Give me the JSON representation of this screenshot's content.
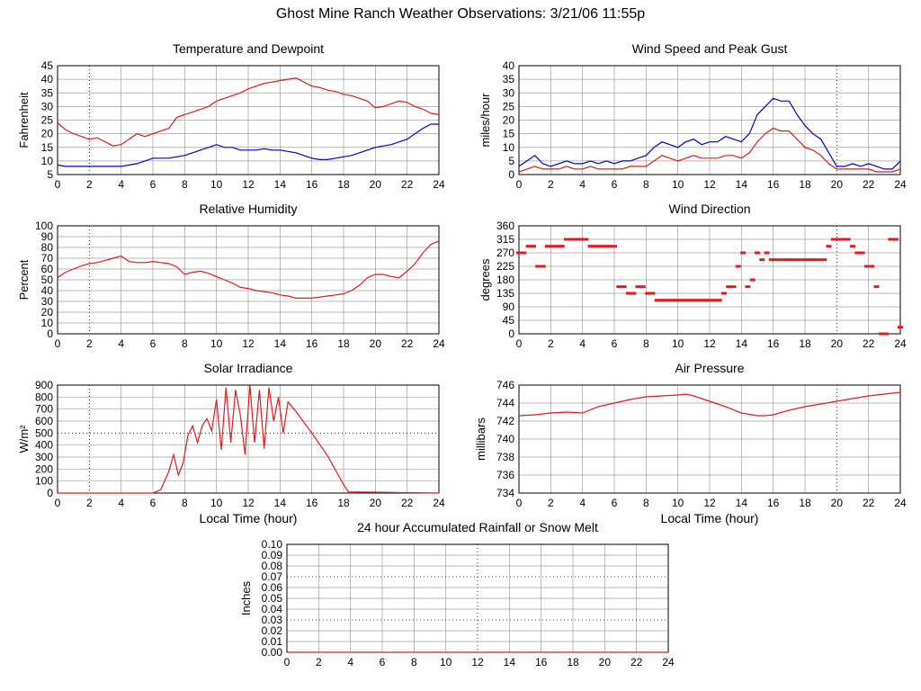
{
  "page": {
    "title": "Ghost Mine Ranch Weather Observations: 3/21/06 11:55p"
  },
  "colors": {
    "red": "#e41a1c",
    "blue": "#0000cc",
    "grid": "#a0a0a0",
    "axis": "#000000"
  },
  "chart_data": [
    {
      "id": "temp",
      "type": "line",
      "title": "Temperature and Dewpoint",
      "ylabel": "Fahrenheit",
      "xlabel": "",
      "xlim": [
        0,
        24
      ],
      "ylim": [
        5,
        45
      ],
      "xticks": [
        0,
        2,
        4,
        6,
        8,
        10,
        12,
        14,
        16,
        18,
        20,
        22,
        24
      ],
      "yticks": [
        5,
        10,
        15,
        20,
        25,
        30,
        35,
        40,
        45
      ],
      "grid": true,
      "series": [
        {
          "color": "red",
          "x": [
            0,
            0.5,
            1,
            1.5,
            2,
            2.5,
            3,
            3.5,
            4,
            4.5,
            5,
            5.5,
            6,
            6.5,
            7,
            7.5,
            8,
            8.5,
            9,
            9.5,
            10,
            10.5,
            11,
            11.5,
            12,
            12.5,
            13,
            13.5,
            14,
            14.5,
            15,
            15.5,
            16,
            16.5,
            17,
            17.5,
            18,
            18.5,
            19,
            19.5,
            20,
            20.5,
            21,
            21.5,
            22,
            22.5,
            23,
            23.5,
            24
          ],
          "y": [
            24,
            21.5,
            20,
            19,
            18,
            18.5,
            17,
            15.5,
            16,
            18,
            20,
            19,
            20,
            21,
            22,
            26,
            27,
            28,
            29,
            30,
            32,
            33,
            34,
            35,
            36.5,
            37.5,
            38.5,
            39,
            39.5,
            40,
            40.5,
            39,
            37.5,
            37,
            36,
            35.5,
            34.5,
            34,
            33,
            32,
            29.5,
            30,
            31,
            32,
            31.5,
            30,
            29,
            27.5,
            27
          ]
        },
        {
          "color": "blue",
          "x": [
            0,
            0.5,
            1,
            1.5,
            2,
            2.5,
            3,
            3.5,
            4,
            4.5,
            5,
            5.5,
            6,
            6.5,
            7,
            7.5,
            8,
            8.5,
            9,
            9.5,
            10,
            10.5,
            11,
            11.5,
            12,
            12.5,
            13,
            13.5,
            14,
            14.5,
            15,
            15.5,
            16,
            16.5,
            17,
            17.5,
            18,
            18.5,
            19,
            19.5,
            20,
            20.5,
            21,
            21.5,
            22,
            22.5,
            23,
            23.5,
            24
          ],
          "y": [
            8.5,
            8,
            8,
            8,
            8,
            8,
            8,
            8,
            8,
            8.5,
            9,
            10,
            11,
            11,
            11,
            11.5,
            12,
            13,
            14,
            15,
            16,
            15,
            15,
            14,
            14,
            14,
            14.5,
            14,
            14,
            13.5,
            13,
            12,
            11,
            10.5,
            10.5,
            11,
            11.5,
            12,
            13,
            14,
            15,
            15.5,
            16,
            17,
            18,
            20,
            22,
            23.5,
            23.5
          ]
        }
      ]
    },
    {
      "id": "wind",
      "type": "line",
      "title": "Wind Speed and Peak Gust",
      "ylabel": "miles/hour",
      "xlabel": "",
      "xlim": [
        0,
        24
      ],
      "ylim": [
        0,
        40
      ],
      "xticks": [
        0,
        2,
        4,
        6,
        8,
        10,
        12,
        14,
        16,
        18,
        20,
        22,
        24
      ],
      "yticks": [
        0,
        5,
        10,
        15,
        20,
        25,
        30,
        35,
        40
      ],
      "grid": true,
      "series": [
        {
          "color": "blue",
          "x": [
            0,
            0.5,
            1,
            1.5,
            2,
            2.5,
            3,
            3.5,
            4,
            4.5,
            5,
            5.5,
            6,
            6.5,
            7,
            7.5,
            8,
            8.5,
            9,
            9.5,
            10,
            10.5,
            11,
            11.5,
            12,
            12.5,
            13,
            13.5,
            14,
            14.5,
            15,
            15.5,
            16,
            16.5,
            17,
            17.5,
            18,
            18.5,
            19,
            19.5,
            20,
            20.5,
            21,
            21.5,
            22,
            22.5,
            23,
            23.5,
            24
          ],
          "y": [
            3,
            5,
            7,
            4,
            3,
            4,
            5,
            4,
            4,
            5,
            4,
            5,
            4,
            5,
            5,
            6,
            7,
            10,
            12,
            11,
            10,
            12,
            13,
            11,
            12,
            12,
            14,
            13,
            12,
            15,
            22,
            25,
            28,
            27,
            27,
            22,
            18,
            15,
            13,
            8,
            3,
            3,
            4,
            3,
            4,
            3,
            2,
            2,
            5
          ]
        },
        {
          "color": "red",
          "x": [
            0,
            0.5,
            1,
            1.5,
            2,
            2.5,
            3,
            3.5,
            4,
            4.5,
            5,
            5.5,
            6,
            6.5,
            7,
            7.5,
            8,
            8.5,
            9,
            9.5,
            10,
            10.5,
            11,
            11.5,
            12,
            12.5,
            13,
            13.5,
            14,
            14.5,
            15,
            15.5,
            16,
            16.5,
            17,
            17.5,
            18,
            18.5,
            19,
            19.5,
            20,
            20.5,
            21,
            21.5,
            22,
            22.5,
            23,
            23.5,
            24
          ],
          "y": [
            1,
            2,
            3,
            2,
            2,
            2,
            3,
            2,
            2,
            3,
            2,
            2,
            2,
            2,
            3,
            3,
            3,
            5,
            7,
            6,
            5,
            6,
            7,
            6,
            6,
            6,
            7,
            7,
            6,
            8,
            12,
            15,
            17,
            16,
            16,
            13,
            10,
            9,
            7,
            4,
            2,
            2,
            2,
            2,
            2,
            1,
            1,
            1,
            2
          ]
        }
      ]
    },
    {
      "id": "rh",
      "type": "line",
      "title": "Relative Humidity",
      "ylabel": "Percent",
      "xlabel": "",
      "xlim": [
        0,
        24
      ],
      "ylim": [
        0,
        100
      ],
      "xticks": [
        0,
        2,
        4,
        6,
        8,
        10,
        12,
        14,
        16,
        18,
        20,
        22,
        24
      ],
      "yticks": [
        0,
        10,
        20,
        30,
        40,
        50,
        60,
        70,
        80,
        90,
        100
      ],
      "grid": true,
      "series": [
        {
          "color": "red",
          "x": [
            0,
            0.5,
            1,
            1.5,
            2,
            2.5,
            3,
            3.5,
            4,
            4.5,
            5,
            5.5,
            6,
            6.5,
            7,
            7.5,
            8,
            8.5,
            9,
            9.5,
            10,
            10.5,
            11,
            11.5,
            12,
            12.5,
            13,
            13.5,
            14,
            14.5,
            15,
            15.5,
            16,
            16.5,
            17,
            17.5,
            18,
            18.5,
            19,
            19.5,
            20,
            20.5,
            21,
            21.5,
            22,
            22.5,
            23,
            23.5,
            24
          ],
          "y": [
            52,
            57,
            60,
            63,
            65,
            66,
            68,
            70,
            72,
            67,
            66,
            66,
            67,
            66,
            65,
            62,
            55,
            57,
            58,
            56,
            53,
            50,
            47,
            43,
            42,
            40,
            39,
            38,
            36,
            35,
            33,
            33,
            33,
            34,
            35,
            36,
            37,
            40,
            45,
            52,
            55,
            55,
            53,
            52,
            58,
            65,
            75,
            83,
            86
          ]
        }
      ]
    },
    {
      "id": "wdir",
      "type": "scatter",
      "title": "Wind Direction",
      "ylabel": "degrees",
      "xlabel": "",
      "xlim": [
        0,
        24
      ],
      "ylim": [
        0,
        360
      ],
      "xticks": [
        0,
        2,
        4,
        6,
        8,
        10,
        12,
        14,
        16,
        18,
        20,
        22,
        24
      ],
      "yticks": [
        0,
        45,
        90,
        135,
        180,
        225,
        270,
        315,
        360
      ],
      "grid": true,
      "series": [
        {
          "color": "red",
          "x": [
            0,
            0.3,
            0.6,
            0.9,
            1.2,
            1.5,
            1.8,
            2.1,
            2.4,
            2.7,
            3.0,
            3.3,
            3.6,
            3.9,
            4.2,
            4.5,
            4.8,
            5.1,
            5.4,
            5.7,
            6.0,
            6.3,
            6.6,
            6.9,
            7.2,
            7.5,
            7.8,
            8.1,
            8.4,
            8.7,
            9.0,
            9.3,
            9.6,
            9.9,
            10.2,
            10.5,
            10.8,
            11.1,
            11.4,
            11.7,
            12.0,
            12.3,
            12.6,
            12.9,
            13.2,
            13.5,
            13.8,
            14.1,
            14.4,
            14.7,
            15.0,
            15.3,
            15.6,
            15.9,
            16.2,
            16.5,
            16.8,
            17.1,
            17.4,
            17.7,
            18.0,
            18.3,
            18.6,
            18.9,
            19.2,
            19.5,
            19.8,
            20.1,
            20.4,
            20.7,
            21.0,
            21.3,
            21.6,
            21.9,
            22.2,
            22.5,
            22.8,
            23.1,
            23.4,
            23.7,
            24.0
          ],
          "y": [
            270,
            270,
            292,
            292,
            225,
            225,
            292,
            292,
            292,
            292,
            315,
            315,
            315,
            315,
            315,
            292,
            292,
            292,
            292,
            292,
            292,
            157,
            157,
            135,
            135,
            157,
            157,
            135,
            135,
            112,
            112,
            112,
            112,
            112,
            112,
            112,
            112,
            112,
            112,
            112,
            112,
            112,
            112,
            135,
            157,
            157,
            225,
            270,
            157,
            180,
            270,
            247,
            270,
            247,
            247,
            247,
            247,
            247,
            247,
            247,
            247,
            247,
            247,
            247,
            247,
            292,
            315,
            315,
            315,
            315,
            292,
            270,
            270,
            225,
            225,
            157,
            0,
            0,
            315,
            315,
            22
          ]
        }
      ]
    },
    {
      "id": "solar",
      "type": "line",
      "title": "Solar Irradiance",
      "ylabel": "W/m²",
      "xlabel": "Local Time (hour)",
      "xlim": [
        0,
        24
      ],
      "ylim": [
        0,
        900
      ],
      "xticks": [
        0,
        2,
        4,
        6,
        8,
        10,
        12,
        14,
        16,
        18,
        20,
        22,
        24
      ],
      "yticks": [
        0,
        100,
        200,
        300,
        400,
        500,
        600,
        700,
        800,
        900
      ],
      "grid": true,
      "series": [
        {
          "color": "red",
          "x": [
            0,
            6.0,
            6.5,
            7.0,
            7.3,
            7.6,
            7.9,
            8.2,
            8.5,
            8.8,
            9.1,
            9.4,
            9.7,
            10.0,
            10.3,
            10.6,
            10.9,
            11.2,
            11.5,
            11.8,
            12.1,
            12.4,
            12.7,
            13.0,
            13.3,
            13.6,
            13.9,
            14.2,
            14.5,
            15.0,
            16.0,
            17.0,
            18.0,
            18.3,
            24
          ],
          "y": [
            0,
            0,
            30,
            180,
            320,
            150,
            250,
            480,
            560,
            420,
            560,
            620,
            520,
            780,
            360,
            880,
            420,
            860,
            650,
            320,
            900,
            420,
            860,
            370,
            880,
            600,
            800,
            500,
            760,
            680,
            500,
            310,
            70,
            10,
            0
          ]
        }
      ]
    },
    {
      "id": "pressure",
      "type": "line",
      "title": "Air Pressure",
      "ylabel": "millibars",
      "xlabel": "Local Time (hour)",
      "xlim": [
        0,
        24
      ],
      "ylim": [
        734,
        746
      ],
      "xticks": [
        0,
        2,
        4,
        6,
        8,
        10,
        12,
        14,
        16,
        18,
        20,
        22,
        24
      ],
      "yticks": [
        734,
        736,
        738,
        740,
        742,
        744,
        746
      ],
      "grid": true,
      "series": [
        {
          "color": "red",
          "x": [
            0,
            1,
            2,
            3,
            4,
            5,
            6,
            7,
            8,
            9,
            10,
            10.5,
            11,
            12,
            13,
            14,
            15,
            15.5,
            16,
            17,
            18,
            19,
            20,
            21,
            22,
            23,
            24
          ],
          "y": [
            742.6,
            742.7,
            742.9,
            743.0,
            742.9,
            743.6,
            744.0,
            744.4,
            744.7,
            744.8,
            744.9,
            745.0,
            744.8,
            744.2,
            743.6,
            742.9,
            742.6,
            742.6,
            742.7,
            743.2,
            743.6,
            743.9,
            744.2,
            744.5,
            744.8,
            745.0,
            745.2
          ]
        }
      ]
    },
    {
      "id": "rain",
      "type": "line",
      "title": "24 hour Accumulated Rainfall or Snow Melt",
      "ylabel": "Inches",
      "xlabel": "",
      "xlim": [
        0,
        24
      ],
      "ylim": [
        0,
        0.1
      ],
      "xticks": [
        0,
        2,
        4,
        6,
        8,
        10,
        12,
        14,
        16,
        18,
        20,
        22,
        24
      ],
      "yticks": [
        "0.00",
        "0.01",
        "0.02",
        "0.03",
        "0.04",
        "0.05",
        "0.06",
        "0.07",
        "0.08",
        "0.09",
        "0.10"
      ],
      "grid": true,
      "series": [
        {
          "color": "red",
          "x": [
            0,
            24
          ],
          "y": [
            0,
            0
          ]
        }
      ]
    }
  ]
}
